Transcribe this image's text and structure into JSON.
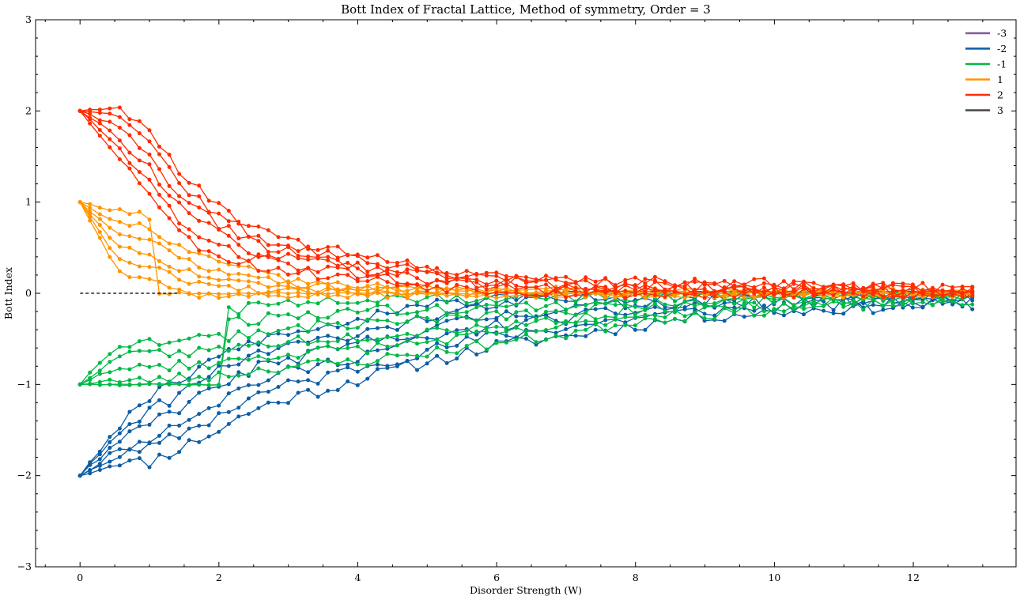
{
  "chart_data": {
    "type": "line",
    "title": "Bott Index of Fractal Lattice, Method of symmetry, Order = 3",
    "xlabel": "Disorder Strength (W)",
    "ylabel": "Bott Index",
    "xlim": [
      -0.64,
      13.48
    ],
    "ylim": [
      -3,
      3
    ],
    "x_ticks": [
      0,
      2,
      4,
      6,
      8,
      10,
      12
    ],
    "y_ticks": [
      -3,
      -2,
      -1,
      0,
      1,
      2,
      3
    ],
    "x_tick_labels": [
      "0",
      "2",
      "4",
      "6",
      "8",
      "10",
      "12"
    ],
    "y_tick_labels": [
      "−3",
      "−2",
      "−1",
      "0",
      "1",
      "2",
      "3"
    ],
    "reference_line": {
      "y": 0,
      "x_range": [
        0,
        1.4
      ],
      "style": "dashed",
      "color": "#000000"
    },
    "legend": {
      "position": "top-right",
      "entries": [
        {
          "label": "-3",
          "color": "#845B97"
        },
        {
          "label": "-2",
          "color": "#0C5DA5"
        },
        {
          "label": "-1",
          "color": "#00B945"
        },
        {
          "label": "1",
          "color": "#FF9500"
        },
        {
          "label": "2",
          "color": "#FF2C00"
        },
        {
          "label": "3",
          "color": "#474747"
        }
      ]
    },
    "series_groups": [
      {
        "name": "-2",
        "start": -2,
        "count": 6,
        "color": "#0C5DA5",
        "n_points": 91,
        "x_range": [
          0,
          12.85
        ],
        "seed": 11,
        "anchors": [
          [
            0,
            -2
          ],
          [
            0.5,
            -1.7
          ],
          [
            1,
            -1.5
          ],
          [
            1.5,
            -1.3
          ],
          [
            2,
            -1.1
          ],
          [
            2.5,
            -0.9
          ],
          [
            3,
            -0.8
          ],
          [
            3.5,
            -0.72
          ],
          [
            4,
            -0.62
          ],
          [
            5,
            -0.45
          ],
          [
            6,
            -0.3
          ],
          [
            7,
            -0.22
          ],
          [
            8,
            -0.15
          ],
          [
            9,
            -0.1
          ],
          [
            10,
            -0.08
          ],
          [
            11,
            -0.06
          ],
          [
            12.85,
            -0.05
          ]
        ],
        "spread": [
          [
            0,
            0
          ],
          [
            1,
            0.35
          ],
          [
            2,
            0.4
          ],
          [
            3,
            0.35
          ],
          [
            5,
            0.3
          ],
          [
            7,
            0.25
          ],
          [
            9,
            0.15
          ],
          [
            12.85,
            0.06
          ]
        ],
        "noise": 0.07
      },
      {
        "name": "-1",
        "start": -1,
        "count": 6,
        "color": "#00B945",
        "n_points": 91,
        "x_range": [
          0,
          12.85
        ],
        "seed": 23,
        "anchors": [
          [
            0,
            -1
          ],
          [
            0.5,
            -0.65
          ],
          [
            1,
            -0.6
          ],
          [
            2,
            -0.55
          ],
          [
            3,
            -0.45
          ],
          [
            4,
            -0.4
          ],
          [
            5,
            -0.35
          ],
          [
            6,
            -0.3
          ],
          [
            7,
            -0.25
          ],
          [
            8,
            -0.15
          ],
          [
            9,
            -0.1
          ],
          [
            10,
            -0.07
          ],
          [
            11,
            -0.05
          ],
          [
            12.85,
            -0.03
          ]
        ],
        "spread": [
          [
            0,
            0
          ],
          [
            0.6,
            0.35
          ],
          [
            2,
            0.35
          ],
          [
            4,
            0.35
          ],
          [
            6,
            0.25
          ],
          [
            8,
            0.15
          ],
          [
            12.85,
            0.05
          ]
        ],
        "noise": 0.06
      },
      {
        "name": "1",
        "start": 1,
        "count": 6,
        "color": "#FF9500",
        "n_points": 91,
        "x_range": [
          0,
          12.85
        ],
        "seed": 37,
        "anchors": [
          [
            0,
            1
          ],
          [
            0.5,
            0.6
          ],
          [
            1,
            0.5
          ],
          [
            1.5,
            0.3
          ],
          [
            2,
            0.2
          ],
          [
            3,
            0.08
          ],
          [
            4,
            0.04
          ],
          [
            6,
            0.02
          ],
          [
            8,
            0.01
          ],
          [
            12.85,
            0
          ]
        ],
        "spread": [
          [
            0,
            0
          ],
          [
            0.6,
            0.35
          ],
          [
            1.5,
            0.3
          ],
          [
            3,
            0.1
          ],
          [
            5,
            0.04
          ],
          [
            12.85,
            0.02
          ]
        ],
        "noise": 0.04
      },
      {
        "name": "2",
        "start": 2,
        "count": 6,
        "color": "#FF2C00",
        "n_points": 91,
        "x_range": [
          0,
          12.85
        ],
        "seed": 53,
        "anchors": [
          [
            0,
            2
          ],
          [
            0.5,
            1.8
          ],
          [
            1,
            1.45
          ],
          [
            1.5,
            0.95
          ],
          [
            2,
            0.7
          ],
          [
            2.5,
            0.5
          ],
          [
            3,
            0.42
          ],
          [
            4,
            0.28
          ],
          [
            5,
            0.18
          ],
          [
            6,
            0.12
          ],
          [
            7,
            0.08
          ],
          [
            8,
            0.06
          ],
          [
            10,
            0.05
          ],
          [
            12.85,
            0.02
          ]
        ],
        "spread": [
          [
            0,
            0
          ],
          [
            0.6,
            0.3
          ],
          [
            1.5,
            0.35
          ],
          [
            2.5,
            0.2
          ],
          [
            4,
            0.12
          ],
          [
            6,
            0.08
          ],
          [
            12.85,
            0.04
          ]
        ],
        "noise": 0.06
      }
    ]
  }
}
